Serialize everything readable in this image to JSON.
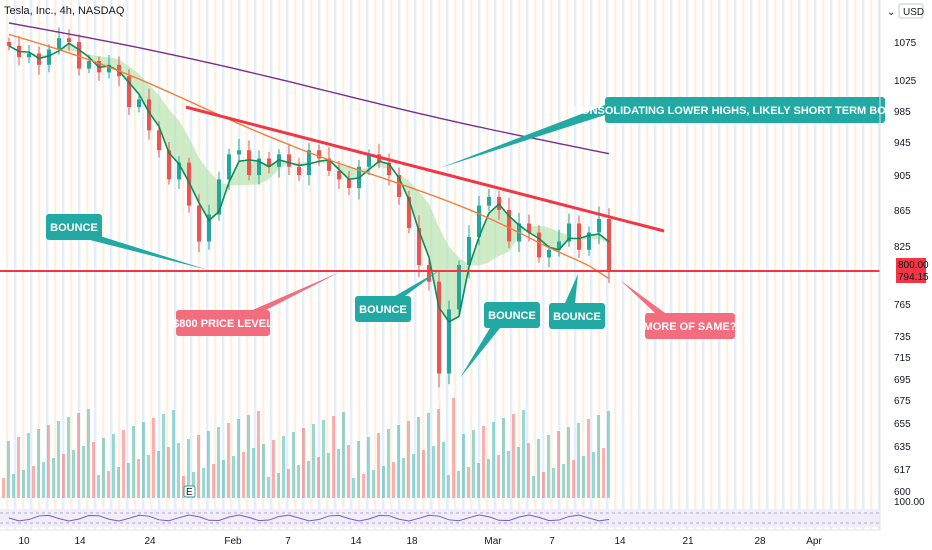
{
  "header": {
    "symbol_title": "Tesla, Inc., 4h, NASDAQ",
    "currency_label": "USD"
  },
  "chart_data": {
    "type": "candlestick",
    "symbol": "Tesla, Inc.",
    "interval": "4h",
    "exchange": "NASDAQ",
    "currency": "USD",
    "price_axis": {
      "ticks": [
        1075,
        1025,
        985,
        945,
        905,
        865,
        825,
        765,
        735,
        715,
        695,
        675,
        655,
        635,
        617,
        600
      ],
      "range": [
        595,
        1105
      ]
    },
    "time_axis": {
      "labels": [
        "10",
        "14",
        "24",
        "Feb",
        "7",
        "14",
        "18",
        "Mar",
        "7",
        "14",
        "21",
        "28",
        "Apr"
      ]
    },
    "price_labels": {
      "horizontal_level": "800.00",
      "last_price": "794.15"
    },
    "rsi_pane_label": "100.00",
    "close_path": [
      1070,
      1055,
      1060,
      1045,
      1065,
      1080,
      1075,
      1040,
      1050,
      1035,
      1045,
      1030,
      990,
      1000,
      960,
      935,
      900,
      920,
      870,
      830,
      860,
      900,
      930,
      935,
      905,
      925,
      915,
      930,
      915,
      905,
      935,
      925,
      910,
      900,
      890,
      915,
      930,
      920,
      905,
      880,
      845,
      800,
      785,
      700,
      760,
      800,
      835,
      870,
      880,
      865,
      830,
      850,
      840,
      810,
      820,
      830,
      850,
      820,
      840,
      855,
      794
    ],
    "annotations": {
      "trendline_price": {
        "start": 990,
        "end": 855
      },
      "horizontal_level_price": 800,
      "callouts": [
        "CONSOLIDATING LOWER HIGHS, LIKELY SHORT TERM BOUNCE",
        "BOUNCE",
        "$800 PRICE LEVEL",
        "BOUNCE",
        "BOUNCE",
        "BOUNCE",
        "MORE OF SAME?"
      ]
    },
    "colors": {
      "up": "#26a69a",
      "down": "#ef5350",
      "trendline": "#f23645",
      "callout_teal": "#22a9a3",
      "callout_red": "#f26d7d",
      "ma_fast": "#0b8a5c",
      "ma_mid": "#f57c3a",
      "ma_slow": "#7b2d8b",
      "ribbon": "#b9e4b0"
    }
  }
}
